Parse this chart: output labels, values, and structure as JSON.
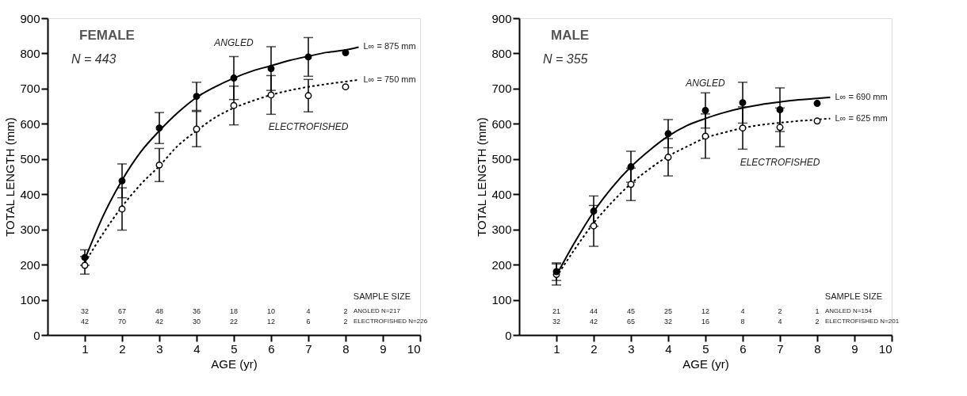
{
  "chart_data": [
    {
      "type": "scatter",
      "xlabel": "AGE (yr)",
      "ylabel": "TOTAL LENGTH (mm)",
      "xlim": [
        0,
        10
      ],
      "ylim": [
        0,
        900
      ],
      "xticks": [
        1,
        2,
        3,
        4,
        5,
        6,
        7,
        8,
        9,
        10
      ],
      "yticks": [
        0,
        100,
        200,
        300,
        400,
        500,
        600,
        700,
        800,
        900
      ],
      "grid": false,
      "series": [
        {
          "type": "line",
          "color": "#000000",
          "line_style": "solid",
          "marker": "none",
          "x": [
            1,
            1.5,
            2,
            2.5,
            3,
            3.5,
            4,
            4.5,
            5,
            5.5,
            6,
            6.5,
            7,
            7.5,
            8,
            8.35
          ],
          "values": [
            215,
            340,
            440,
            520,
            580,
            632,
            675,
            705,
            730,
            750,
            765,
            780,
            792,
            803,
            810,
            818
          ]
        },
        {
          "type": "line",
          "color": "#000000",
          "line_style": "dotted",
          "marker": "none",
          "x": [
            1,
            1.5,
            2,
            2.5,
            3,
            3.5,
            4,
            4.5,
            5,
            5.5,
            6,
            6.5,
            7,
            7.5,
            8,
            8.35
          ],
          "values": [
            205,
            290,
            365,
            428,
            480,
            538,
            580,
            618,
            645,
            665,
            682,
            695,
            705,
            713,
            720,
            725
          ]
        },
        {
          "color": "#000000",
          "marker": "circle",
          "x": [
            1,
            2,
            3,
            4,
            5,
            6,
            7,
            8
          ],
          "values": [
            220,
            438,
            588,
            678,
            730,
            757,
            790,
            802
          ],
          "errors": [
            22,
            48,
            44,
            40,
            61,
            62,
            55,
            null
          ]
        },
        {
          "color": "#ffffff",
          "marker": "circle",
          "x": [
            1,
            2,
            3,
            4,
            5,
            6,
            7,
            8
          ],
          "values": [
            198,
            358,
            483,
            585,
            652,
            682,
            680,
            705
          ],
          "errors": [
            25,
            60,
            47,
            50,
            55,
            55,
            46,
            null
          ]
        }
      ],
      "annotations": [
        "FEMALE",
        "N = 443",
        "SAMPLE SIZE",
        "ANGLED",
        "ELECTROFISHED",
        "L∞ = 875 mm",
        "L∞ = 750 mm",
        "32 67 48 36 18 10 4 2",
        "42 70 42 30 22 12 6 2",
        "ANGLED N=217",
        "ELECTROFISHED N=226"
      ]
    },
    {
      "type": "scatter",
      "xlabel": "AGE (yr)",
      "ylabel": "TOTAL LENGTH (mm)",
      "xlim": [
        0,
        10
      ],
      "ylim": [
        0,
        900
      ],
      "xticks": [
        1,
        2,
        3,
        4,
        5,
        6,
        7,
        8,
        9,
        10
      ],
      "yticks": [
        0,
        100,
        200,
        300,
        400,
        500,
        600,
        700,
        800,
        900
      ],
      "grid": false,
      "series": [
        {
          "type": "line",
          "color": "#000000",
          "line_style": "solid",
          "marker": "none",
          "x": [
            1,
            1.5,
            2,
            2.5,
            3,
            3.5,
            4,
            4.5,
            5,
            5.5,
            6,
            6.5,
            7,
            7.5,
            8,
            8.35
          ],
          "values": [
            170,
            265,
            350,
            420,
            478,
            525,
            565,
            595,
            615,
            632,
            645,
            655,
            662,
            668,
            672,
            675
          ]
        },
        {
          "type": "line",
          "color": "#000000",
          "line_style": "dotted",
          "marker": "none",
          "x": [
            1,
            1.5,
            2,
            2.5,
            3,
            3.5,
            4,
            4.5,
            5,
            5.5,
            6,
            6.5,
            7,
            7.5,
            8,
            8.35
          ],
          "values": [
            165,
            245,
            318,
            378,
            430,
            472,
            508,
            535,
            560,
            575,
            588,
            597,
            603,
            608,
            612,
            615
          ]
        },
        {
          "color": "#000000",
          "marker": "circle",
          "x": [
            1,
            2,
            3,
            4,
            5,
            6,
            7,
            8
          ],
          "values": [
            180,
            352,
            478,
            572,
            638,
            660,
            640,
            658
          ],
          "errors": [
            25,
            43,
            44,
            40,
            50,
            58,
            62,
            null
          ]
        },
        {
          "color": "#ffffff",
          "marker": "circle",
          "x": [
            1,
            2,
            3,
            4,
            5,
            6,
            7,
            8
          ],
          "values": [
            172,
            310,
            428,
            505,
            565,
            588,
            590,
            608
          ],
          "errors": [
            30,
            58,
            46,
            53,
            63,
            60,
            55,
            null
          ]
        }
      ],
      "annotations": [
        "MALE",
        "N = 355",
        "SAMPLE SIZE",
        "ANGLED",
        "ELECTROFISHED",
        "L∞ = 690 mm",
        "L∞ = 625 mm",
        "21 44 45 25 12 4 2 1",
        "32 42 65 32 16 8 4 2",
        "ANGLED N=154",
        "ELECTROFISHED N=201"
      ]
    }
  ]
}
